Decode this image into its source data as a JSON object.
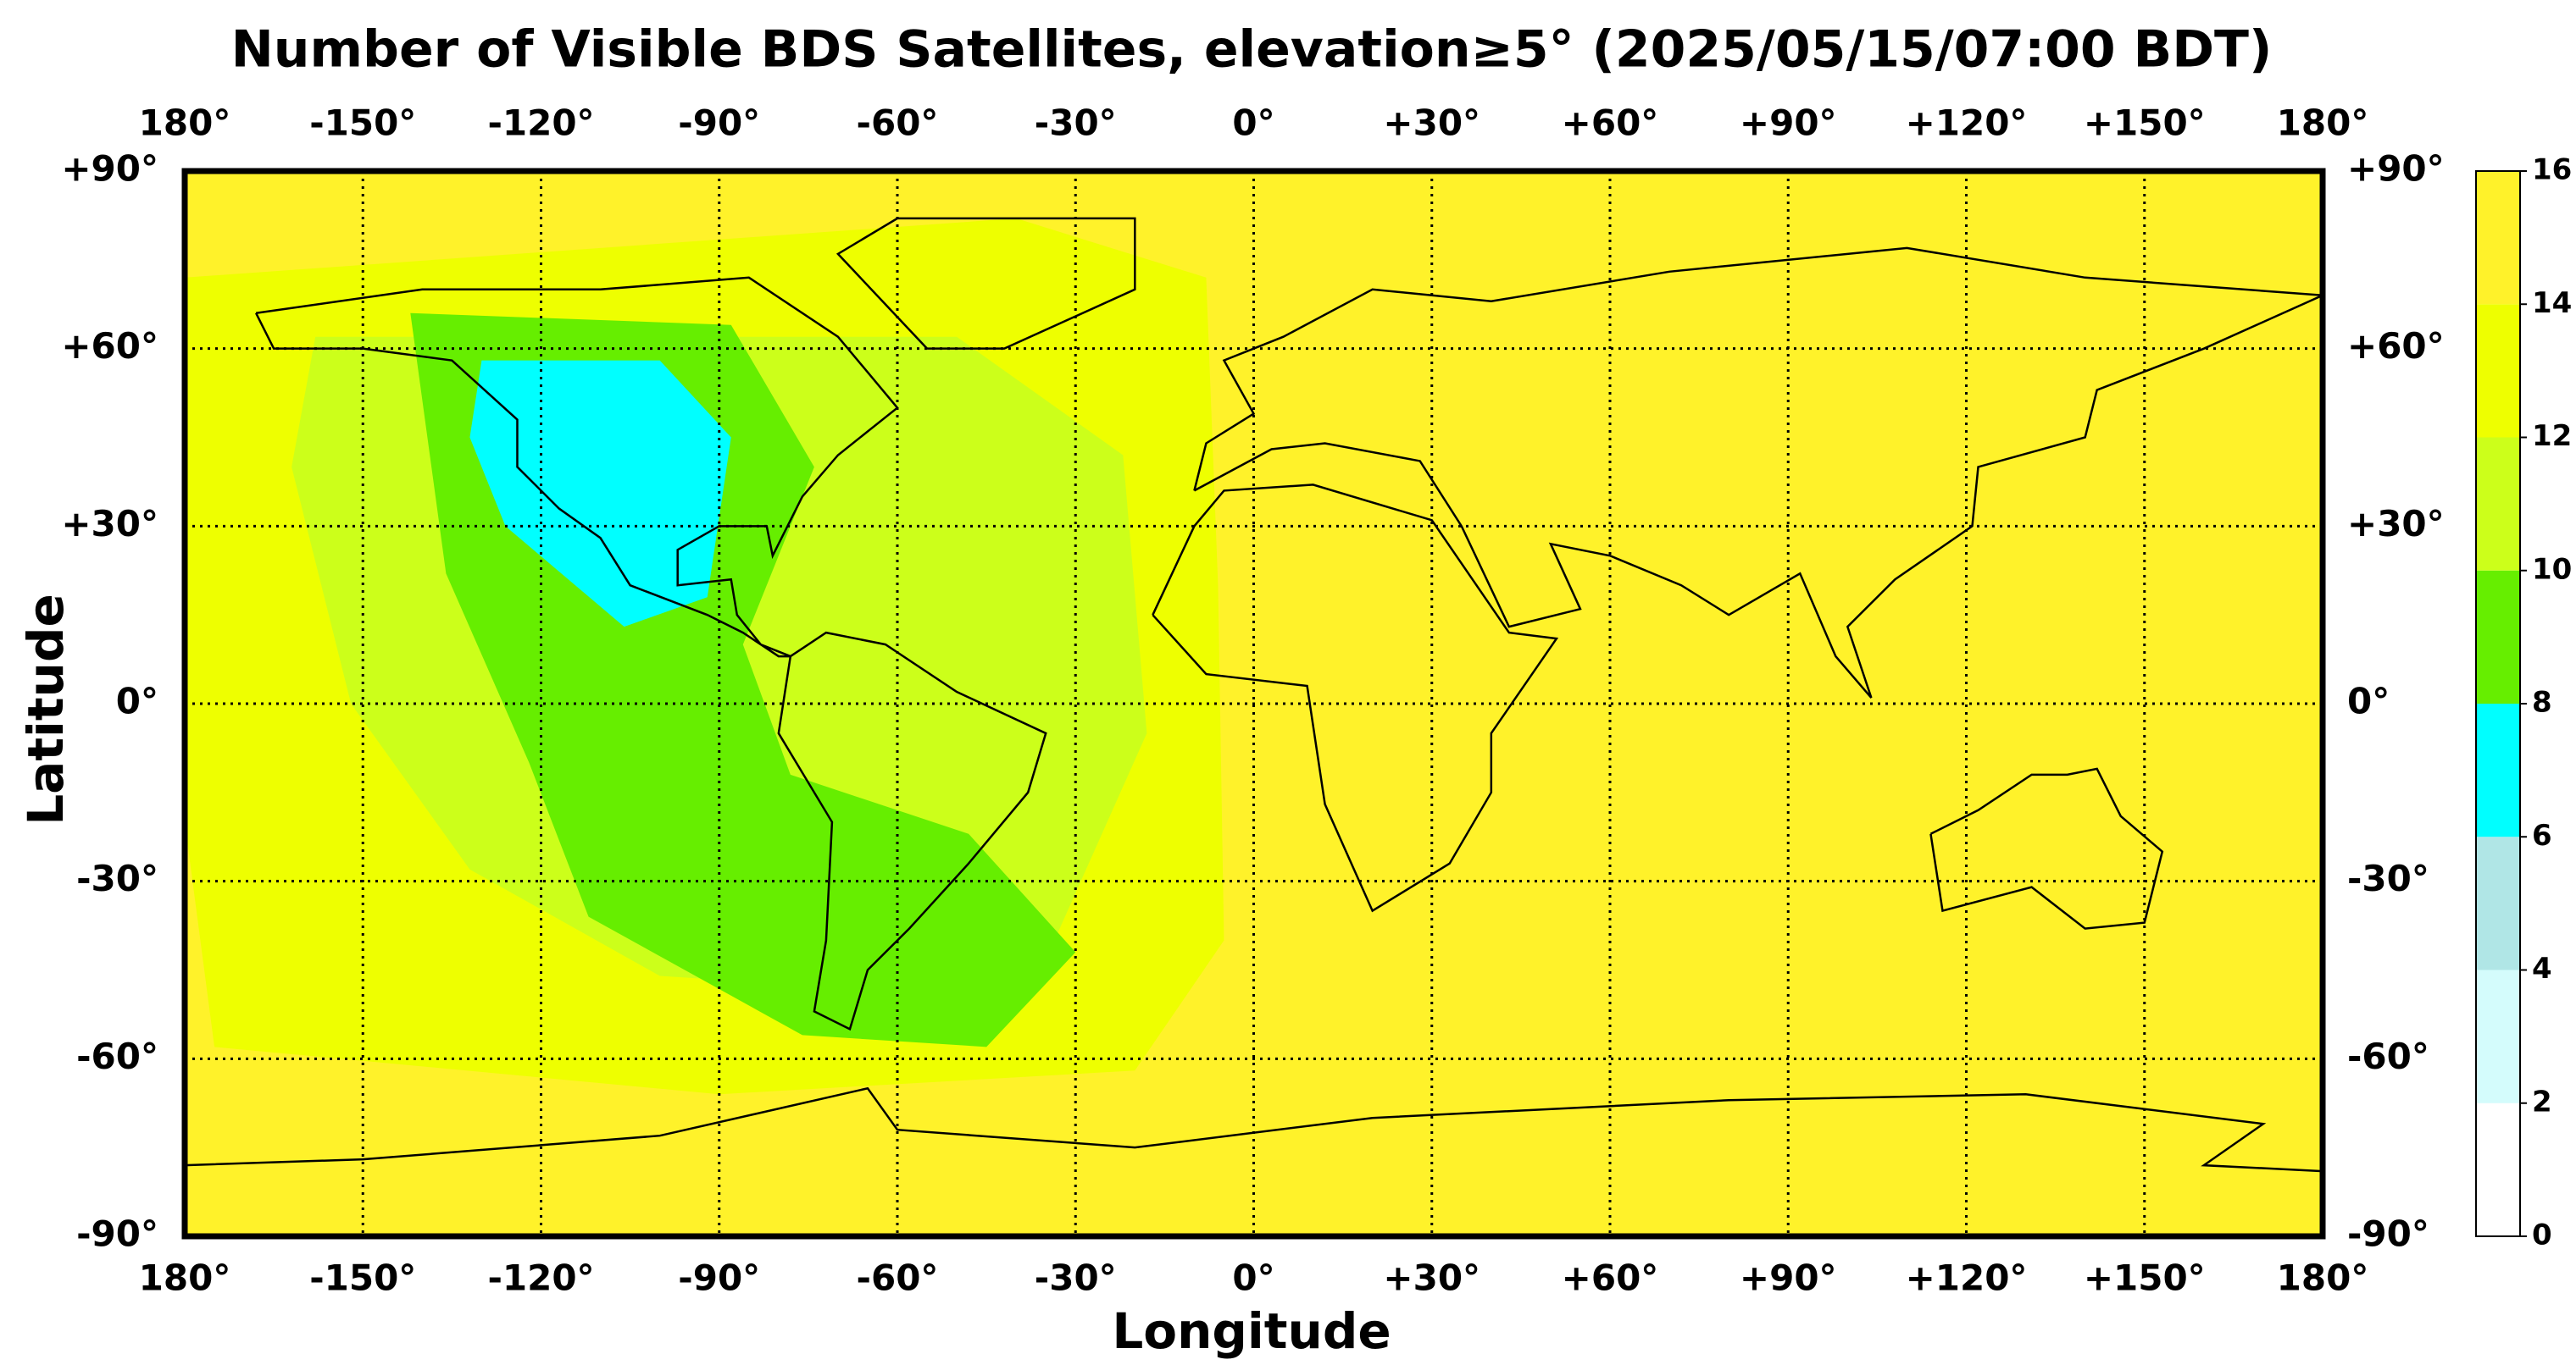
{
  "chart_data": {
    "type": "map",
    "title": "Number of Visible BDS Satellites, elevation≥5° (2025/05/15/07:00 BDT)",
    "xlabel": "Longitude",
    "ylabel": "Latitude",
    "xlim": [
      -180,
      180
    ],
    "ylim": [
      -90,
      90
    ],
    "xticks": [
      {
        "value": -180,
        "label": "180°"
      },
      {
        "value": -150,
        "label": "-150°"
      },
      {
        "value": -120,
        "label": "-120°"
      },
      {
        "value": -90,
        "label": "-90°"
      },
      {
        "value": -60,
        "label": "-60°"
      },
      {
        "value": -30,
        "label": "-30°"
      },
      {
        "value": 0,
        "label": "0°"
      },
      {
        "value": 30,
        "label": "+30°"
      },
      {
        "value": 60,
        "label": "+60°"
      },
      {
        "value": 90,
        "label": "+90°"
      },
      {
        "value": 120,
        "label": "+120°"
      },
      {
        "value": 150,
        "label": "+150°"
      },
      {
        "value": 180,
        "label": "180°"
      }
    ],
    "yticks": [
      {
        "value": 90,
        "label": "+90°"
      },
      {
        "value": 60,
        "label": "+60°"
      },
      {
        "value": 30,
        "label": "+30°"
      },
      {
        "value": 0,
        "label": "0°"
      },
      {
        "value": -30,
        "label": "-30°"
      },
      {
        "value": -60,
        "label": "-60°"
      },
      {
        "value": -90,
        "label": "-90°"
      }
    ],
    "grid": true,
    "levels": [
      15,
      13,
      11,
      9,
      7
    ],
    "colorbar": {
      "ticks": [
        0,
        2,
        4,
        6,
        8,
        10,
        12,
        14,
        16
      ],
      "colors": [
        "#ffffff",
        "#d4fcfc",
        "#b0e6e6",
        "#00ffff",
        "#66ee00",
        "#ccff1a",
        "#eeff00",
        "#fff22a"
      ]
    }
  }
}
